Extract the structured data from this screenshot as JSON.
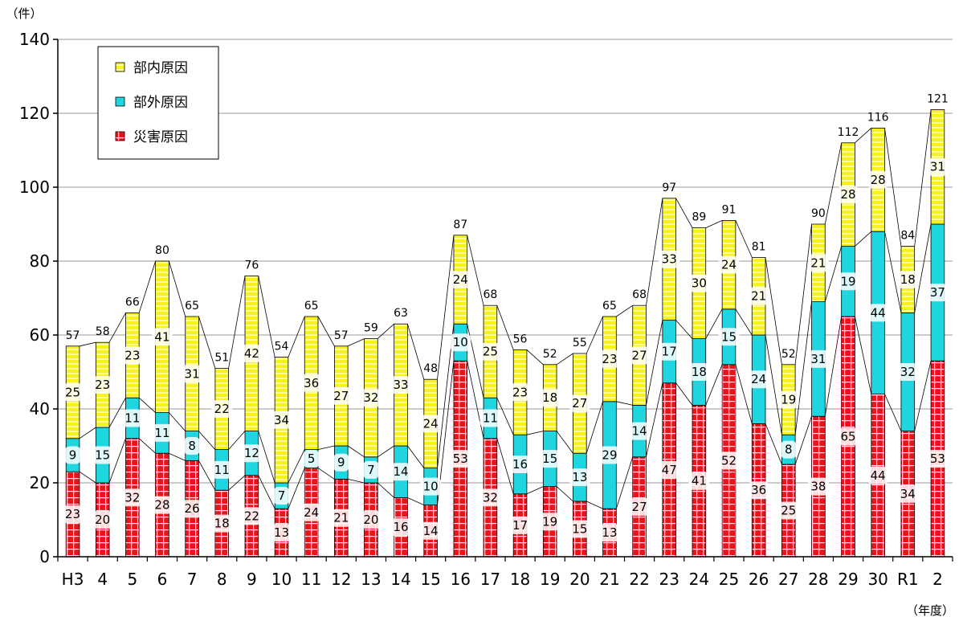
{
  "chart_data": {
    "type": "bar",
    "stacked": true,
    "y_unit_label": "（件）",
    "x_unit_label": "（年度）",
    "ylim": [
      0,
      140
    ],
    "yticks": [
      0,
      20,
      40,
      60,
      80,
      100,
      120,
      140
    ],
    "grid": true,
    "legend_position": "top-left",
    "categories": [
      "H3",
      "4",
      "5",
      "6",
      "7",
      "8",
      "9",
      "10",
      "11",
      "12",
      "13",
      "14",
      "15",
      "16",
      "17",
      "18",
      "19",
      "20",
      "21",
      "22",
      "23",
      "24",
      "25",
      "26",
      "27",
      "28",
      "29",
      "30",
      "R1",
      "2"
    ],
    "series": [
      {
        "name": "災害原因",
        "color": "#e8141c",
        "values": [
          23,
          20,
          32,
          28,
          26,
          18,
          22,
          13,
          24,
          21,
          20,
          16,
          14,
          53,
          32,
          17,
          19,
          15,
          13,
          27,
          47,
          41,
          52,
          36,
          25,
          38,
          65,
          44,
          34,
          53
        ]
      },
      {
        "name": "部外原因",
        "color": "#1fd6e0",
        "values": [
          9,
          15,
          11,
          11,
          8,
          11,
          12,
          7,
          5,
          9,
          7,
          14,
          10,
          10,
          11,
          16,
          15,
          13,
          29,
          14,
          17,
          18,
          15,
          24,
          8,
          31,
          19,
          44,
          32,
          37
        ]
      },
      {
        "name": "部内原因",
        "color": "#f7f21c",
        "values": [
          25,
          23,
          23,
          41,
          31,
          22,
          42,
          34,
          36,
          27,
          32,
          33,
          24,
          24,
          25,
          23,
          18,
          27,
          23,
          27,
          33,
          30,
          24,
          21,
          19,
          21,
          28,
          28,
          18,
          31
        ]
      }
    ],
    "totals": [
      57,
      58,
      66,
      80,
      65,
      51,
      76,
      54,
      65,
      57,
      59,
      63,
      48,
      87,
      68,
      56,
      52,
      55,
      65,
      68,
      97,
      89,
      91,
      81,
      52,
      90,
      112,
      116,
      84,
      121
    ],
    "legend_order": [
      "部内原因",
      "部外原因",
      "災害原因"
    ]
  }
}
